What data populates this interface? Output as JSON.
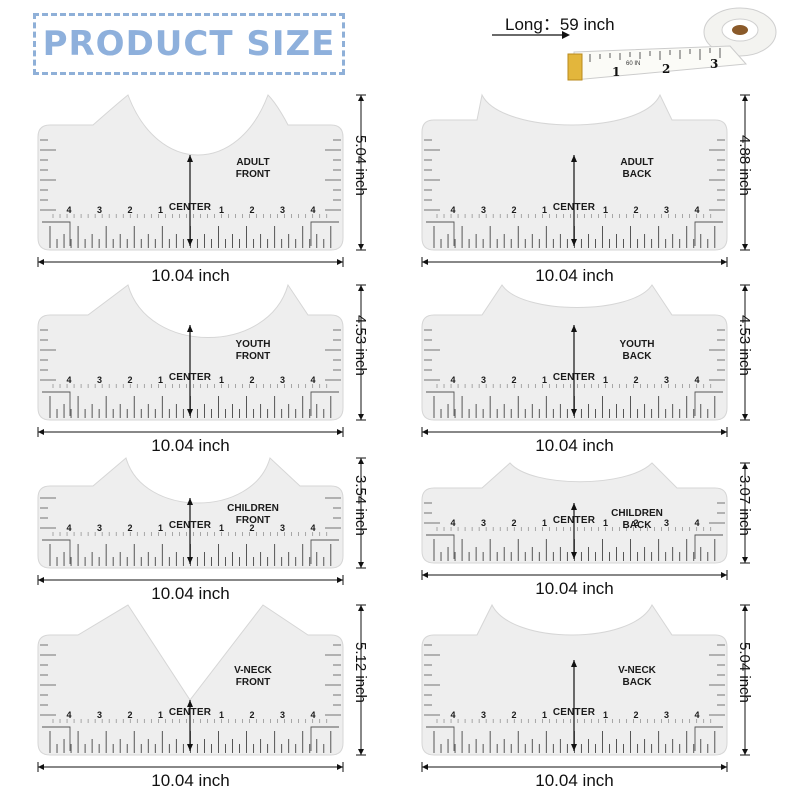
{
  "header": {
    "title": "PRODUCT SIZE",
    "tape_label": "Long：59 inch",
    "tape_numbers": [
      "1",
      "2",
      "3"
    ],
    "tape_small_text": "60 IN"
  },
  "common": {
    "center_label": "CENTER",
    "width_label": "10.04 inch"
  },
  "rulers": [
    {
      "name": "ADULT\nFRONT",
      "height_label": "5.04 inch"
    },
    {
      "name": "ADULT\nBACK",
      "height_label": "4.88 inch"
    },
    {
      "name": "YOUTH\nFRONT",
      "height_label": "4.53 inch"
    },
    {
      "name": "YOUTH\nBACK",
      "height_label": "4.53 inch"
    },
    {
      "name": "CHILDREN\nFRONT",
      "height_label": "3.54 inch"
    },
    {
      "name": "CHILDREN\nBACK",
      "height_label": "3.07 inch"
    },
    {
      "name": "V-NECK\nFRONT",
      "height_label": "5.12 inch"
    },
    {
      "name": "V-NECK\nBACK",
      "height_label": "5.04 inch"
    }
  ],
  "colors": {
    "ruler_fill": "#eeeeee",
    "ruler_stroke": "#d6d6d6",
    "title_color": "#8eb0dc"
  }
}
